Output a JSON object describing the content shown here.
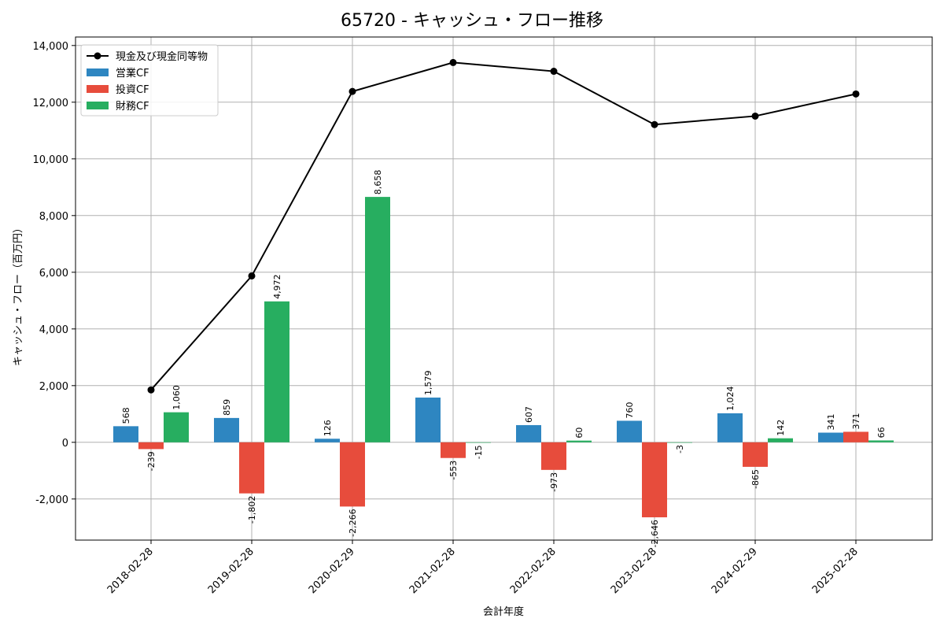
{
  "chart_data": {
    "type": "bar",
    "title": "65720 - キャッシュ・フロー推移",
    "xlabel": "会計年度",
    "ylabel": "キャッシュ・フロー（百万円）",
    "categories": [
      "2018-02-28",
      "2019-02-28",
      "2020-02-29",
      "2021-02-28",
      "2022-02-28",
      "2023-02-28",
      "2024-02-29",
      "2025-02-28"
    ],
    "series": [
      {
        "name": "営業CF",
        "type": "bar",
        "color": "#2e86c1",
        "values": [
          568,
          859,
          126,
          1579,
          607,
          760,
          1024,
          341
        ]
      },
      {
        "name": "投資CF",
        "type": "bar",
        "color": "#e74c3c",
        "values": [
          -239,
          -1802,
          -2266,
          -553,
          -973,
          -2646,
          -865,
          371
        ]
      },
      {
        "name": "財務CF",
        "type": "bar",
        "color": "#27ae60",
        "values": [
          1060,
          4972,
          8658,
          -15,
          60,
          -3,
          142,
          66
        ]
      },
      {
        "name": "現金及び現金同等物",
        "type": "line",
        "color": "#000000",
        "values": [
          1850,
          5870,
          12380,
          13400,
          13090,
          11210,
          11510,
          12290
        ]
      }
    ],
    "ylim": [
      -3450,
      14300
    ],
    "yticks": [
      -2000,
      0,
      2000,
      4000,
      6000,
      8000,
      10000,
      12000,
      14000
    ],
    "grid": true,
    "legend_position": "top-left"
  }
}
